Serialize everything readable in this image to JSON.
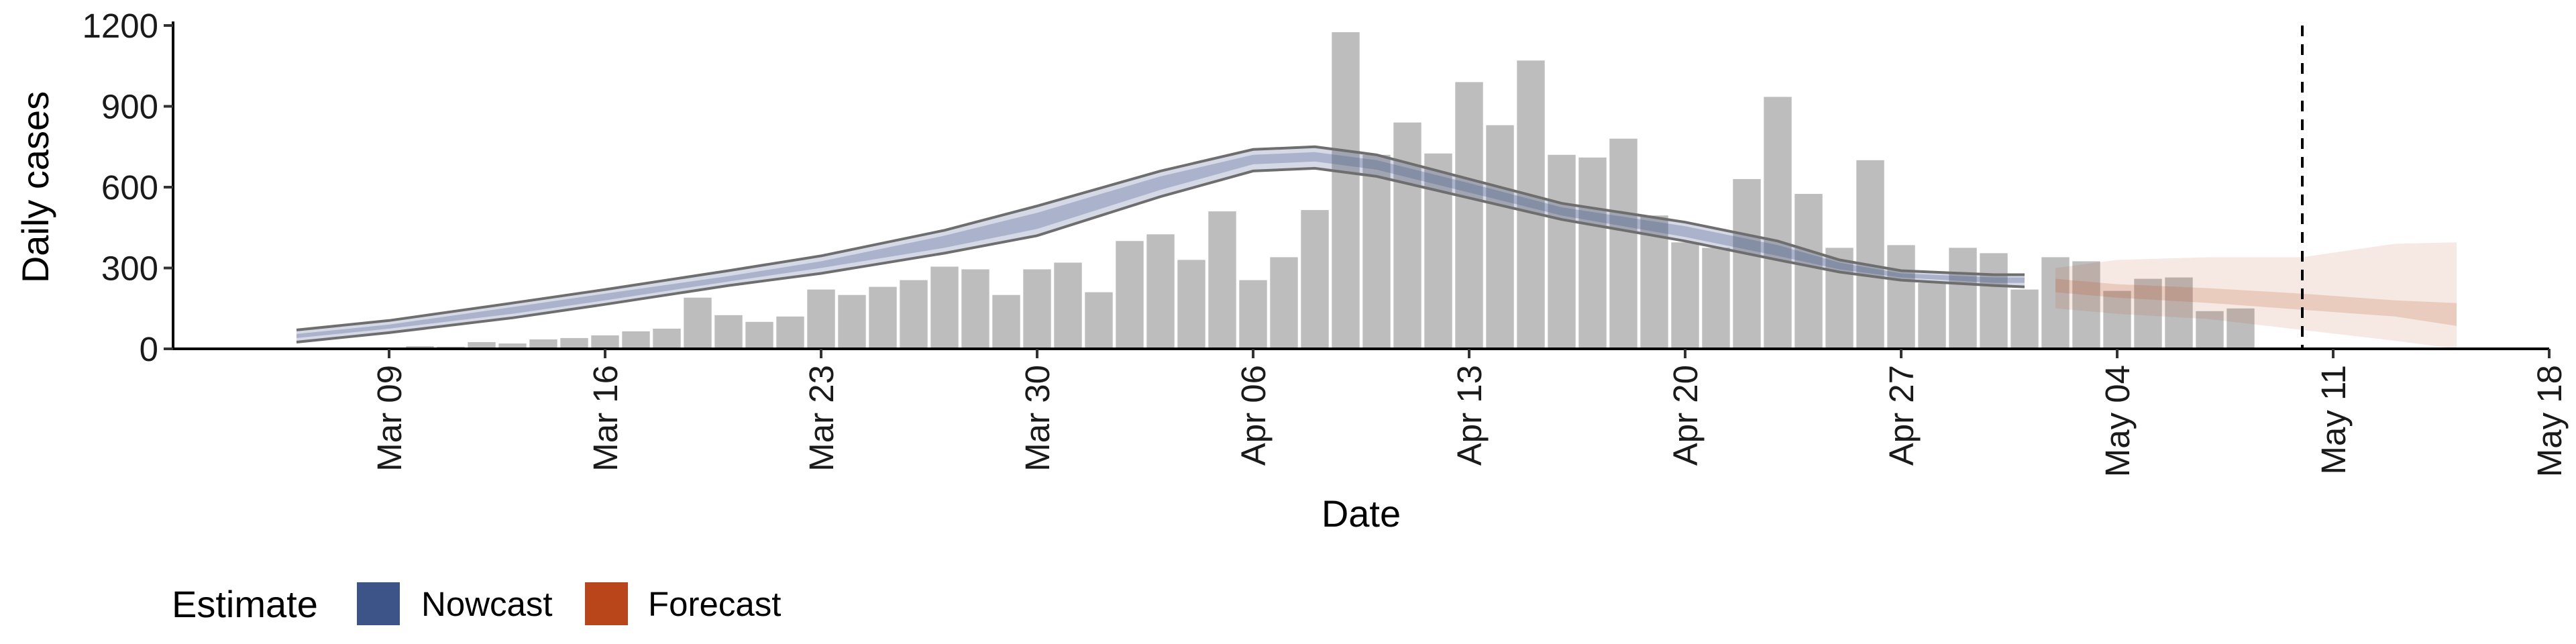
{
  "chart_data": {
    "type": "bar",
    "xlabel": "Date",
    "ylabel": "Daily cases",
    "ylim": [
      0,
      1200
    ],
    "yticks": [
      0,
      300,
      600,
      900,
      1200
    ],
    "xlim": [
      "2020-03-02",
      "2020-05-18"
    ],
    "xticks": [
      {
        "date": "2020-03-09",
        "label": "Mar 09"
      },
      {
        "date": "2020-03-16",
        "label": "Mar 16"
      },
      {
        "date": "2020-03-23",
        "label": "Mar 23"
      },
      {
        "date": "2020-03-30",
        "label": "Mar 30"
      },
      {
        "date": "2020-04-06",
        "label": "Apr 06"
      },
      {
        "date": "2020-04-13",
        "label": "Apr 13"
      },
      {
        "date": "2020-04-20",
        "label": "Apr 20"
      },
      {
        "date": "2020-04-27",
        "label": "Apr 27"
      },
      {
        "date": "2020-05-04",
        "label": "May 04"
      },
      {
        "date": "2020-05-11",
        "label": "May 11"
      },
      {
        "date": "2020-05-18",
        "label": "May 18"
      }
    ],
    "grid": false,
    "reference_line": {
      "date": "2020-05-10",
      "style": "dashed"
    },
    "bars": {
      "color": "#bdbdbd",
      "dates": [
        "2020-03-06",
        "2020-03-07",
        "2020-03-08",
        "2020-03-09",
        "2020-03-10",
        "2020-03-11",
        "2020-03-12",
        "2020-03-13",
        "2020-03-14",
        "2020-03-15",
        "2020-03-16",
        "2020-03-17",
        "2020-03-18",
        "2020-03-19",
        "2020-03-20",
        "2020-03-21",
        "2020-03-22",
        "2020-03-23",
        "2020-03-24",
        "2020-03-25",
        "2020-03-26",
        "2020-03-27",
        "2020-03-28",
        "2020-03-29",
        "2020-03-30",
        "2020-03-31",
        "2020-04-01",
        "2020-04-02",
        "2020-04-03",
        "2020-04-04",
        "2020-04-05",
        "2020-04-06",
        "2020-04-07",
        "2020-04-08",
        "2020-04-09",
        "2020-04-10",
        "2020-04-11",
        "2020-04-12",
        "2020-04-13",
        "2020-04-14",
        "2020-04-15",
        "2020-04-16",
        "2020-04-17",
        "2020-04-18",
        "2020-04-19",
        "2020-04-20",
        "2020-04-21",
        "2020-04-22",
        "2020-04-23",
        "2020-04-24",
        "2020-04-25",
        "2020-04-26",
        "2020-04-27",
        "2020-04-28",
        "2020-04-29",
        "2020-04-30",
        "2020-05-01",
        "2020-05-02",
        "2020-05-03",
        "2020-05-04",
        "2020-05-05",
        "2020-05-06",
        "2020-05-07",
        "2020-05-08",
        "2020-05-09",
        "2020-05-10"
      ],
      "values": [
        2,
        2,
        0,
        0,
        10,
        8,
        25,
        20,
        35,
        40,
        50,
        65,
        75,
        190,
        125,
        100,
        120,
        220,
        200,
        230,
        255,
        305,
        295,
        200,
        295,
        320,
        210,
        400,
        425,
        330,
        510,
        255,
        340,
        515,
        1175,
        720,
        840,
        725,
        990,
        830,
        1070,
        720,
        710,
        780,
        495,
        395,
        375,
        630,
        935,
        575,
        375,
        700,
        385,
        245,
        375,
        355,
        220,
        340,
        325,
        215,
        260,
        265,
        140,
        150,
        0,
        0
      ]
    },
    "series": [
      {
        "name": "Nowcast",
        "type": "band",
        "color": "#3c5488",
        "dates": [
          "2020-03-06",
          "2020-03-09",
          "2020-03-13",
          "2020-03-16",
          "2020-03-20",
          "2020-03-23",
          "2020-03-27",
          "2020-03-30",
          "2020-04-03",
          "2020-04-06",
          "2020-04-08",
          "2020-04-10",
          "2020-04-13",
          "2020-04-16",
          "2020-04-20",
          "2020-04-23",
          "2020-04-25",
          "2020-04-27",
          "2020-04-30",
          "2020-05-01"
        ],
        "upper": [
          70,
          105,
          170,
          220,
          290,
          345,
          440,
          530,
          660,
          740,
          750,
          720,
          630,
          540,
          470,
          400,
          330,
          290,
          275,
          275
        ],
        "lower": [
          25,
          60,
          115,
          165,
          235,
          280,
          355,
          420,
          565,
          660,
          670,
          640,
          560,
          480,
          400,
          330,
          285,
          255,
          235,
          230
        ],
        "upper_inner": [
          55,
          90,
          155,
          205,
          270,
          325,
          420,
          505,
          640,
          720,
          730,
          700,
          615,
          525,
          455,
          385,
          320,
          280,
          265,
          265
        ],
        "lower_inner": [
          40,
          75,
          130,
          180,
          250,
          300,
          375,
          445,
          590,
          685,
          695,
          665,
          580,
          495,
          415,
          345,
          295,
          265,
          245,
          245
        ]
      },
      {
        "name": "Forecast",
        "type": "band",
        "color": "#b8461a",
        "dates": [
          "2020-05-02",
          "2020-05-04",
          "2020-05-07",
          "2020-05-10",
          "2020-05-13",
          "2020-05-15"
        ],
        "upper": [
          300,
          330,
          340,
          340,
          390,
          395
        ],
        "lower": [
          150,
          130,
          110,
          70,
          30,
          0
        ],
        "upper_inner": [
          260,
          240,
          225,
          205,
          180,
          170
        ],
        "lower_inner": [
          210,
          190,
          170,
          145,
          120,
          85
        ]
      }
    ],
    "legend": {
      "title": "Estimate",
      "position": "bottom-left",
      "items": [
        {
          "label": "Nowcast",
          "color": "#3c5488"
        },
        {
          "label": "Forecast",
          "color": "#b8461a"
        }
      ]
    }
  }
}
